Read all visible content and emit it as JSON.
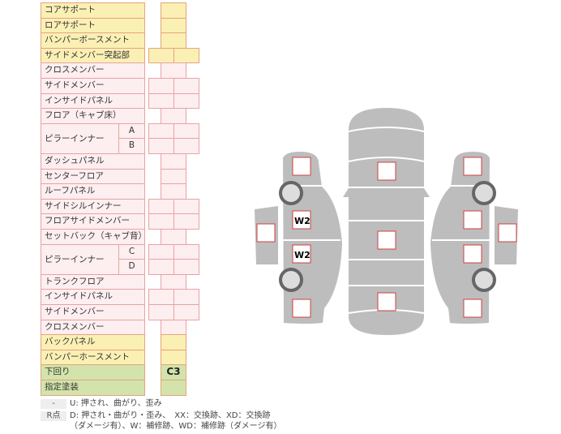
{
  "rows": [
    {
      "label": "コアサポート",
      "color": "y",
      "cells": 1
    },
    {
      "label": "ロアサポート",
      "color": "y",
      "cells": 1
    },
    {
      "label": "バンパーボースメント",
      "color": "y",
      "cells": 1
    },
    {
      "label": "サイドメンバー突起部",
      "color": "y",
      "cells": 2
    },
    {
      "label": "クロスメンバー",
      "color": "p",
      "cells": 1
    },
    {
      "label": "サイドメンバー",
      "color": "p",
      "cells": 2
    },
    {
      "label": "インサイドパネル",
      "color": "p",
      "cells": 2
    },
    {
      "label": "フロア（キャブ床）",
      "color": "p",
      "cells": 1
    },
    {
      "label": "ピラーインナー",
      "color": "p",
      "cells": 2,
      "sub": [
        "A",
        "B"
      ]
    },
    {
      "label": "ダッシュパネル",
      "color": "p",
      "cells": 1
    },
    {
      "label": "センターフロア",
      "color": "p",
      "cells": 1
    },
    {
      "label": "ルーフパネル",
      "color": "p",
      "cells": 1
    },
    {
      "label": "サイドシルインナー",
      "color": "p",
      "cells": 2
    },
    {
      "label": "フロアサイドメンバー",
      "color": "p",
      "cells": 2
    },
    {
      "label": "セットバック（キャブ背）",
      "color": "p",
      "cells": 1
    },
    {
      "label": "ピラーインナー",
      "color": "p",
      "cells": 2,
      "sub": [
        "C",
        "D"
      ]
    },
    {
      "label": "トランクフロア",
      "color": "p",
      "cells": 1
    },
    {
      "label": "インサイドパネル",
      "color": "p",
      "cells": 2
    },
    {
      "label": "サイドメンバー",
      "color": "p",
      "cells": 2
    },
    {
      "label": "クロスメンバー",
      "color": "p",
      "cells": 1
    },
    {
      "label": "バックパネル",
      "color": "y",
      "cells": 1
    },
    {
      "label": "バンパーホースメント",
      "color": "y",
      "cells": 1
    },
    {
      "label": "下回り",
      "color": "g",
      "cells": 1,
      "value": "C3"
    },
    {
      "label": "指定塗装",
      "color": "g",
      "cells": 1
    }
  ],
  "legend": {
    "key1": "-",
    "text1": "U: 押され、曲がり、歪み",
    "key2": "R点",
    "text2a": "D: 押され・曲がり・歪み、　XX：交換跡、XD：交換跡",
    "text2b": "（ダメージ有）、W：補修跡、WD：補修跡（ダメージ有）"
  },
  "diagram": {
    "marks": [
      "W2",
      "W2"
    ],
    "body_color": "#bdbdbd",
    "mark_border": "#d04040"
  }
}
